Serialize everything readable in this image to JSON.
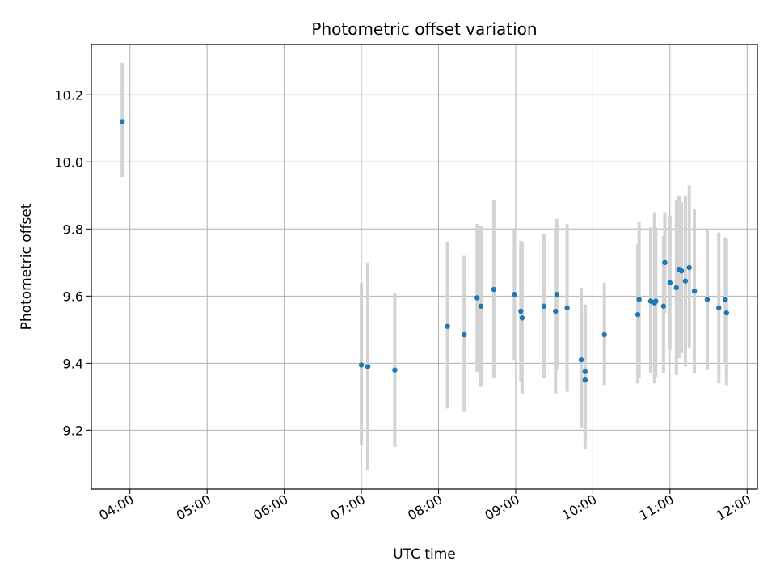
{
  "chart_data": {
    "type": "scatter",
    "title": "Photometric offset variation",
    "xlabel": "UTC time",
    "ylabel": "Photometric offset",
    "x_tick_labels": [
      "04:00",
      "05:00",
      "06:00",
      "07:00",
      "08:00",
      "09:00",
      "10:00",
      "11:00",
      "12:00"
    ],
    "y_tick_labels": [
      "9.2",
      "9.4",
      "9.6",
      "9.8",
      "10.0",
      "10.2"
    ],
    "y_ticks": [
      9.2,
      9.4,
      9.6,
      9.8,
      10.0,
      10.2
    ],
    "xlim": [
      "03:30",
      "12:08"
    ],
    "ylim": [
      9.025,
      10.35
    ],
    "grid": true,
    "point_color": "#1f77b4",
    "errorbar_color": "#d3d3d3",
    "points": [
      {
        "x": "03:54",
        "y": 10.12,
        "lo": 9.955,
        "hi": 10.295
      },
      {
        "x": "07:00",
        "y": 9.395,
        "lo": 9.155,
        "hi": 9.64
      },
      {
        "x": "07:05",
        "y": 9.39,
        "lo": 9.08,
        "hi": 9.7
      },
      {
        "x": "07:26",
        "y": 9.38,
        "lo": 9.15,
        "hi": 9.61
      },
      {
        "x": "08:07",
        "y": 9.51,
        "lo": 9.265,
        "hi": 9.76
      },
      {
        "x": "08:20",
        "y": 9.485,
        "lo": 9.255,
        "hi": 9.72
      },
      {
        "x": "08:30",
        "y": 9.595,
        "lo": 9.375,
        "hi": 9.815
      },
      {
        "x": "08:33",
        "y": 9.57,
        "lo": 9.33,
        "hi": 9.81
      },
      {
        "x": "08:43",
        "y": 9.62,
        "lo": 9.355,
        "hi": 9.885
      },
      {
        "x": "08:59",
        "y": 9.605,
        "lo": 9.41,
        "hi": 9.8
      },
      {
        "x": "09:04",
        "y": 9.555,
        "lo": 9.345,
        "hi": 9.765
      },
      {
        "x": "09:05",
        "y": 9.535,
        "lo": 9.31,
        "hi": 9.76
      },
      {
        "x": "09:22",
        "y": 9.57,
        "lo": 9.355,
        "hi": 9.785
      },
      {
        "x": "09:31",
        "y": 9.555,
        "lo": 9.31,
        "hi": 9.8
      },
      {
        "x": "09:32",
        "y": 9.605,
        "lo": 9.38,
        "hi": 9.83
      },
      {
        "x": "09:40",
        "y": 9.565,
        "lo": 9.315,
        "hi": 9.815
      },
      {
        "x": "09:51",
        "y": 9.41,
        "lo": 9.205,
        "hi": 9.625
      },
      {
        "x": "09:54",
        "y": 9.375,
        "lo": 9.175,
        "hi": 9.575
      },
      {
        "x": "09:54",
        "y": 9.35,
        "lo": 9.145,
        "hi": 9.555
      },
      {
        "x": "10:09",
        "y": 9.485,
        "lo": 9.335,
        "hi": 9.64
      },
      {
        "x": "10:35",
        "y": 9.545,
        "lo": 9.34,
        "hi": 9.755
      },
      {
        "x": "10:36",
        "y": 9.59,
        "lo": 9.355,
        "hi": 9.82
      },
      {
        "x": "10:45",
        "y": 9.585,
        "lo": 9.37,
        "hi": 9.805
      },
      {
        "x": "10:48",
        "y": 9.58,
        "lo": 9.34,
        "hi": 9.85
      },
      {
        "x": "10:49",
        "y": 9.585,
        "lo": 9.36,
        "hi": 9.805
      },
      {
        "x": "10:55",
        "y": 9.57,
        "lo": 9.37,
        "hi": 9.78
      },
      {
        "x": "10:56",
        "y": 9.7,
        "lo": 9.55,
        "hi": 9.85
      },
      {
        "x": "11:00",
        "y": 9.64,
        "lo": 9.44,
        "hi": 9.84
      },
      {
        "x": "11:05",
        "y": 9.625,
        "lo": 9.365,
        "hi": 9.885
      },
      {
        "x": "11:07",
        "y": 9.68,
        "lo": 9.415,
        "hi": 9.9
      },
      {
        "x": "11:09",
        "y": 9.675,
        "lo": 9.43,
        "hi": 9.88
      },
      {
        "x": "11:12",
        "y": 9.645,
        "lo": 9.39,
        "hi": 9.9
      },
      {
        "x": "11:15",
        "y": 9.685,
        "lo": 9.445,
        "hi": 9.93
      },
      {
        "x": "11:19",
        "y": 9.615,
        "lo": 9.37,
        "hi": 9.86
      },
      {
        "x": "11:29",
        "y": 9.59,
        "lo": 9.38,
        "hi": 9.8
      },
      {
        "x": "11:38",
        "y": 9.565,
        "lo": 9.34,
        "hi": 9.79
      },
      {
        "x": "11:43",
        "y": 9.59,
        "lo": 9.4,
        "hi": 9.775
      },
      {
        "x": "11:44",
        "y": 9.55,
        "lo": 9.335,
        "hi": 9.77
      }
    ]
  }
}
